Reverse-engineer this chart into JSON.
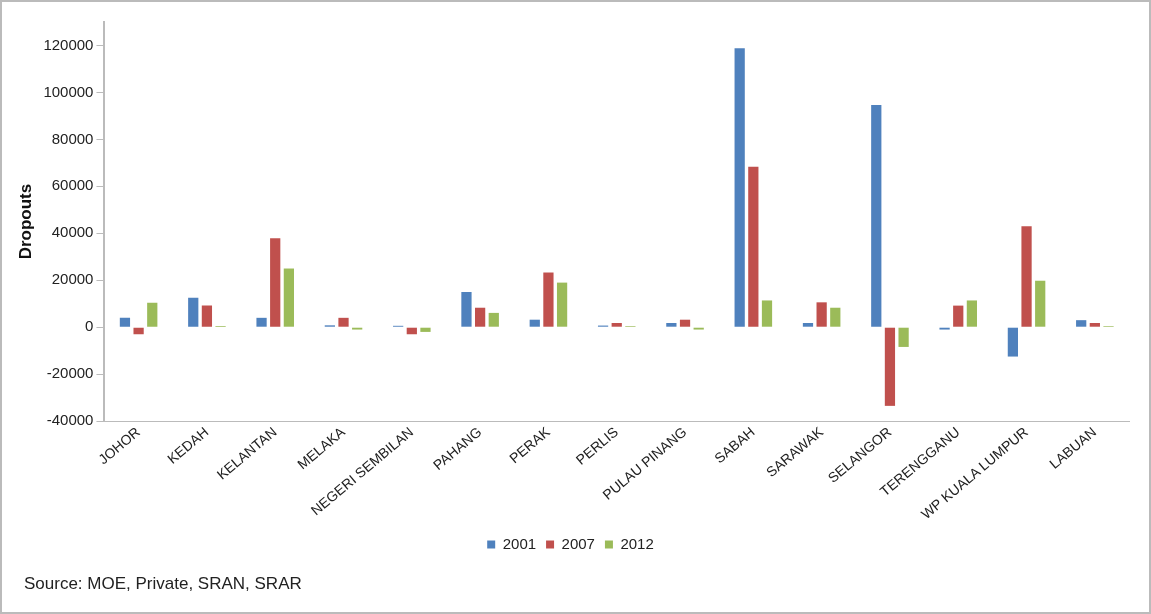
{
  "chart_data": {
    "type": "bar",
    "ylabel": "Dropouts",
    "categories": [
      "JOHOR",
      "KEDAH",
      "KELANTAN",
      "MELAKA",
      "NEGERI SEMBILAN",
      "PAHANG",
      "PERAK",
      "PERLIS",
      "PULAU PINANG",
      "SABAH",
      "SARAWAK",
      "SELANGOR",
      "TERENGGANU",
      "WP KUALA LUMPUR",
      "LABUAN"
    ],
    "series": [
      {
        "name": "2001",
        "color": "#4f81bd",
        "values": [
          4000,
          12500,
          4000,
          800,
          600,
          15000,
          3200,
          700,
          1800,
          118800,
          1800,
          94700,
          -1000,
          -12500,
          3000
        ]
      },
      {
        "name": "2007",
        "color": "#c0504d",
        "values": [
          -3000,
          9300,
          37900,
          4000,
          -3000,
          8300,
          23300,
          1800,
          3200,
          68300,
          10600,
          -33500,
          9200,
          43000,
          1800
        ]
      },
      {
        "name": "2012",
        "color": "#9bbb59",
        "values": [
          10400,
          500,
          25000,
          -1000,
          -2000,
          6100,
          19000,
          500,
          -1000,
          11400,
          8300,
          -8400,
          11400,
          19800,
          500
        ]
      }
    ],
    "ylim": [
      -40000,
      130000
    ],
    "yticks": [
      -40000,
      -20000,
      0,
      20000,
      40000,
      60000,
      80000,
      100000,
      120000
    ],
    "grid": false,
    "legend": "bottom",
    "annotations": [
      "Source: MOE, Private, SRAN, SRAR"
    ]
  }
}
